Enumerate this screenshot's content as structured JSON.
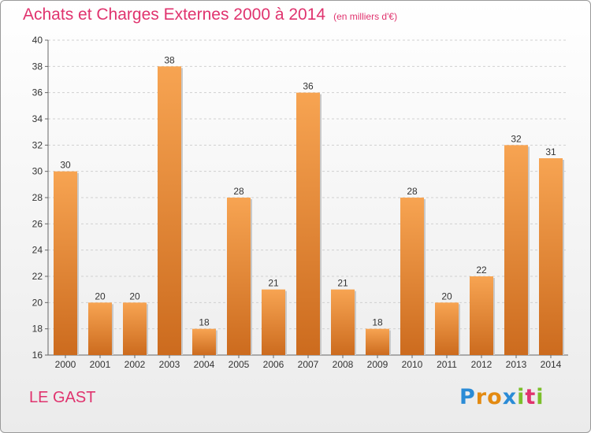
{
  "title": "Achats et Charges Externes 2000 à 2014",
  "unit": "(en milliers d'€)",
  "commune": "LE GAST",
  "logo": {
    "letters": [
      "P",
      "r",
      "o",
      "x",
      "i",
      "t",
      "i"
    ],
    "colors": [
      "#2a8bd6",
      "#e38a12",
      "#e38a12",
      "#2a8bd6",
      "#7cbf2b",
      "#e0336e",
      "#7cbf2b"
    ]
  },
  "colors": {
    "bar_top": "#f7a452",
    "bar_bottom": "#cc6b1e",
    "text": "#e0336e"
  },
  "chart_data": {
    "type": "bar",
    "categories": [
      "2000",
      "2001",
      "2002",
      "2003",
      "2004",
      "2005",
      "2006",
      "2007",
      "2008",
      "2009",
      "2010",
      "2011",
      "2012",
      "2013",
      "2014"
    ],
    "values": [
      30,
      20,
      20,
      38,
      18,
      28,
      21,
      36,
      21,
      18,
      28,
      20,
      22,
      32,
      31
    ],
    "ylim": [
      16,
      40
    ],
    "yticks": [
      "16",
      "18",
      "20",
      "22",
      "24",
      "26",
      "28",
      "30",
      "32",
      "34",
      "36",
      "38",
      "40"
    ],
    "grid": true
  }
}
